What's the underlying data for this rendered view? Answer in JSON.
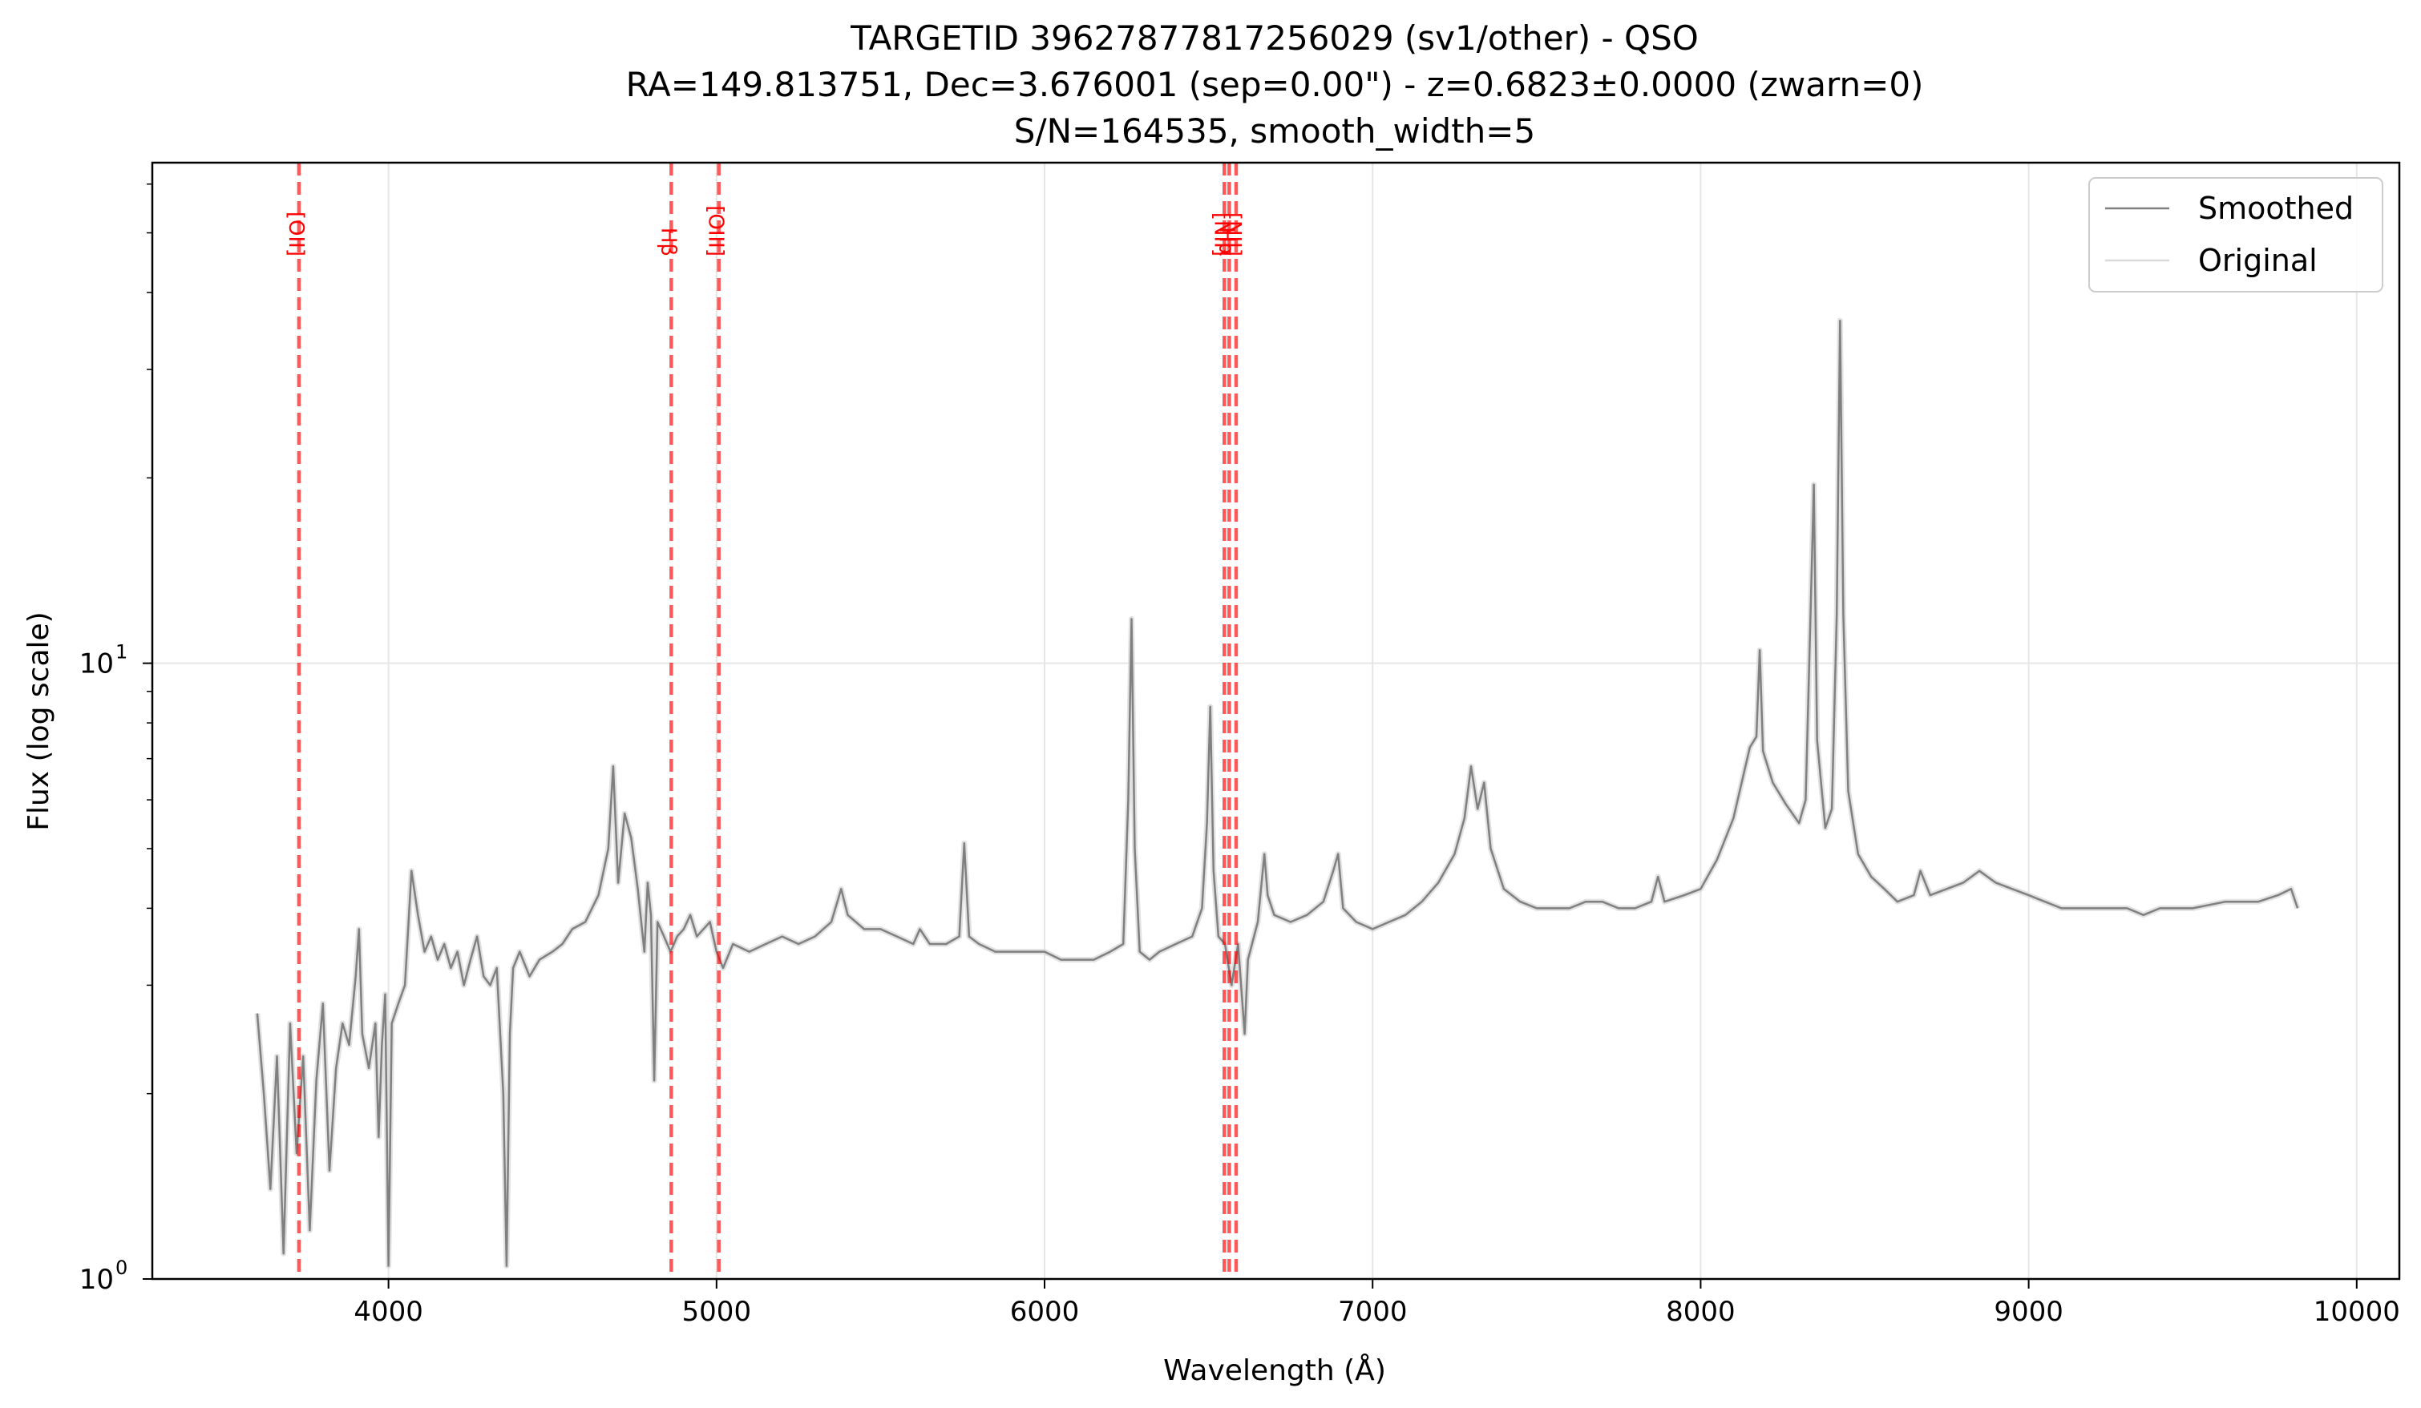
{
  "chart_data": {
    "type": "line",
    "title_lines": [
      "TARGETID 39627877817256029 (sv1/other) - QSO",
      "RA=149.813751, Dec=3.676001 (sep=0.00\") - z=0.6823±0.0000 (zwarn=0)",
      "S/N=164535, smooth_width=5"
    ],
    "xlabel": "Wavelength (Å)",
    "ylabel": "Flux (log scale)",
    "xlim": [
      3280,
      10130
    ],
    "ylim": [
      1,
      65
    ],
    "yscale": "log",
    "x_ticks": [
      {
        "value": 4000,
        "label": "4000"
      },
      {
        "value": 5000,
        "label": "5000"
      },
      {
        "value": 6000,
        "label": "6000"
      },
      {
        "value": 7000,
        "label": "7000"
      },
      {
        "value": 8000,
        "label": "8000"
      },
      {
        "value": 9000,
        "label": "9000"
      },
      {
        "value": 10000,
        "label": "10000"
      }
    ],
    "y_ticks": [
      {
        "value": 1,
        "base": "10",
        "exp": "0"
      },
      {
        "value": 10,
        "base": "10",
        "exp": "1"
      }
    ],
    "grid": true,
    "legend_position": "top-right",
    "series": [
      {
        "name": "Smoothed",
        "color": "#808080",
        "points": [
          [
            3600,
            2.7
          ],
          [
            3620,
            2.0
          ],
          [
            3640,
            1.4
          ],
          [
            3660,
            2.3
          ],
          [
            3680,
            1.1
          ],
          [
            3700,
            2.6
          ],
          [
            3720,
            1.6
          ],
          [
            3740,
            2.3
          ],
          [
            3760,
            1.2
          ],
          [
            3780,
            2.1
          ],
          [
            3800,
            2.8
          ],
          [
            3820,
            1.5
          ],
          [
            3840,
            2.2
          ],
          [
            3860,
            2.6
          ],
          [
            3880,
            2.4
          ],
          [
            3900,
            3.1
          ],
          [
            3910,
            3.7
          ],
          [
            3920,
            2.5
          ],
          [
            3940,
            2.2
          ],
          [
            3960,
            2.6
          ],
          [
            3970,
            1.7
          ],
          [
            3980,
            2.4
          ],
          [
            3990,
            2.9
          ],
          [
            4000,
            1.05
          ],
          [
            4010,
            2.6
          ],
          [
            4030,
            2.8
          ],
          [
            4050,
            3.0
          ],
          [
            4070,
            4.6
          ],
          [
            4090,
            3.9
          ],
          [
            4110,
            3.4
          ],
          [
            4130,
            3.6
          ],
          [
            4150,
            3.3
          ],
          [
            4170,
            3.5
          ],
          [
            4190,
            3.2
          ],
          [
            4210,
            3.4
          ],
          [
            4230,
            3.0
          ],
          [
            4250,
            3.3
          ],
          [
            4270,
            3.6
          ],
          [
            4290,
            3.1
          ],
          [
            4310,
            3.0
          ],
          [
            4330,
            3.2
          ],
          [
            4350,
            2.0
          ],
          [
            4360,
            1.05
          ],
          [
            4370,
            2.5
          ],
          [
            4380,
            3.2
          ],
          [
            4400,
            3.4
          ],
          [
            4430,
            3.1
          ],
          [
            4460,
            3.3
          ],
          [
            4500,
            3.4
          ],
          [
            4530,
            3.5
          ],
          [
            4560,
            3.7
          ],
          [
            4600,
            3.8
          ],
          [
            4640,
            4.2
          ],
          [
            4670,
            5.0
          ],
          [
            4685,
            6.8
          ],
          [
            4700,
            4.4
          ],
          [
            4720,
            5.7
          ],
          [
            4740,
            5.2
          ],
          [
            4760,
            4.3
          ],
          [
            4780,
            3.4
          ],
          [
            4790,
            4.4
          ],
          [
            4800,
            3.9
          ],
          [
            4810,
            2.1
          ],
          [
            4820,
            3.8
          ],
          [
            4840,
            3.6
          ],
          [
            4860,
            3.4
          ],
          [
            4880,
            3.6
          ],
          [
            4900,
            3.7
          ],
          [
            4920,
            3.9
          ],
          [
            4940,
            3.6
          ],
          [
            4960,
            3.7
          ],
          [
            4980,
            3.8
          ],
          [
            5000,
            3.4
          ],
          [
            5020,
            3.2
          ],
          [
            5050,
            3.5
          ],
          [
            5100,
            3.4
          ],
          [
            5150,
            3.5
          ],
          [
            5200,
            3.6
          ],
          [
            5250,
            3.5
          ],
          [
            5300,
            3.6
          ],
          [
            5350,
            3.8
          ],
          [
            5380,
            4.3
          ],
          [
            5400,
            3.9
          ],
          [
            5450,
            3.7
          ],
          [
            5500,
            3.7
          ],
          [
            5550,
            3.6
          ],
          [
            5600,
            3.5
          ],
          [
            5620,
            3.7
          ],
          [
            5650,
            3.5
          ],
          [
            5700,
            3.5
          ],
          [
            5740,
            3.6
          ],
          [
            5755,
            5.1
          ],
          [
            5770,
            3.6
          ],
          [
            5800,
            3.5
          ],
          [
            5850,
            3.4
          ],
          [
            5900,
            3.4
          ],
          [
            5950,
            3.4
          ],
          [
            6000,
            3.4
          ],
          [
            6050,
            3.3
          ],
          [
            6100,
            3.3
          ],
          [
            6150,
            3.3
          ],
          [
            6200,
            3.4
          ],
          [
            6240,
            3.5
          ],
          [
            6255,
            6.0
          ],
          [
            6265,
            11.8
          ],
          [
            6275,
            5.0
          ],
          [
            6290,
            3.4
          ],
          [
            6320,
            3.3
          ],
          [
            6350,
            3.4
          ],
          [
            6400,
            3.5
          ],
          [
            6450,
            3.6
          ],
          [
            6480,
            4.0
          ],
          [
            6495,
            5.5
          ],
          [
            6505,
            8.5
          ],
          [
            6515,
            4.6
          ],
          [
            6530,
            3.6
          ],
          [
            6550,
            3.5
          ],
          [
            6570,
            3.0
          ],
          [
            6590,
            3.5
          ],
          [
            6610,
            2.5
          ],
          [
            6620,
            3.3
          ],
          [
            6650,
            3.8
          ],
          [
            6670,
            4.9
          ],
          [
            6680,
            4.2
          ],
          [
            6700,
            3.9
          ],
          [
            6750,
            3.8
          ],
          [
            6800,
            3.9
          ],
          [
            6850,
            4.1
          ],
          [
            6880,
            4.6
          ],
          [
            6895,
            4.9
          ],
          [
            6910,
            4.0
          ],
          [
            6950,
            3.8
          ],
          [
            7000,
            3.7
          ],
          [
            7050,
            3.8
          ],
          [
            7100,
            3.9
          ],
          [
            7150,
            4.1
          ],
          [
            7200,
            4.4
          ],
          [
            7250,
            4.9
          ],
          [
            7280,
            5.6
          ],
          [
            7300,
            6.8
          ],
          [
            7320,
            5.8
          ],
          [
            7340,
            6.4
          ],
          [
            7360,
            5.0
          ],
          [
            7400,
            4.3
          ],
          [
            7450,
            4.1
          ],
          [
            7500,
            4.0
          ],
          [
            7550,
            4.0
          ],
          [
            7600,
            4.0
          ],
          [
            7650,
            4.1
          ],
          [
            7700,
            4.1
          ],
          [
            7750,
            4.0
          ],
          [
            7800,
            4.0
          ],
          [
            7850,
            4.1
          ],
          [
            7870,
            4.5
          ],
          [
            7890,
            4.1
          ],
          [
            7950,
            4.2
          ],
          [
            8000,
            4.3
          ],
          [
            8050,
            4.8
          ],
          [
            8100,
            5.6
          ],
          [
            8150,
            7.3
          ],
          [
            8170,
            7.6
          ],
          [
            8180,
            10.5
          ],
          [
            8190,
            7.2
          ],
          [
            8220,
            6.4
          ],
          [
            8260,
            5.9
          ],
          [
            8300,
            5.5
          ],
          [
            8320,
            6.0
          ],
          [
            8335,
            12.0
          ],
          [
            8345,
            19.5
          ],
          [
            8355,
            7.5
          ],
          [
            8380,
            5.4
          ],
          [
            8400,
            5.8
          ],
          [
            8415,
            12.0
          ],
          [
            8425,
            36.0
          ],
          [
            8435,
            12.0
          ],
          [
            8450,
            6.2
          ],
          [
            8480,
            4.9
          ],
          [
            8520,
            4.5
          ],
          [
            8560,
            4.3
          ],
          [
            8600,
            4.1
          ],
          [
            8650,
            4.2
          ],
          [
            8670,
            4.6
          ],
          [
            8700,
            4.2
          ],
          [
            8750,
            4.3
          ],
          [
            8800,
            4.4
          ],
          [
            8850,
            4.6
          ],
          [
            8900,
            4.4
          ],
          [
            8950,
            4.3
          ],
          [
            9000,
            4.2
          ],
          [
            9100,
            4.0
          ],
          [
            9200,
            4.0
          ],
          [
            9300,
            4.0
          ],
          [
            9350,
            3.9
          ],
          [
            9400,
            4.0
          ],
          [
            9500,
            4.0
          ],
          [
            9600,
            4.1
          ],
          [
            9700,
            4.1
          ],
          [
            9760,
            4.2
          ],
          [
            9800,
            4.3
          ],
          [
            9820,
            4.0
          ]
        ]
      },
      {
        "name": "Original",
        "color": "#d9d9d9"
      }
    ],
    "emission_lines": [
      {
        "label": "[OII]",
        "x": 3727
      },
      {
        "label": "Hβ",
        "x": 4862
      },
      {
        "label": "[OIII]",
        "x": 5007
      },
      {
        "label": "[NII]",
        "x": 6548
      },
      {
        "label": "Hα",
        "x": 6563
      },
      {
        "label": "[NII]",
        "x": 6584
      }
    ]
  }
}
